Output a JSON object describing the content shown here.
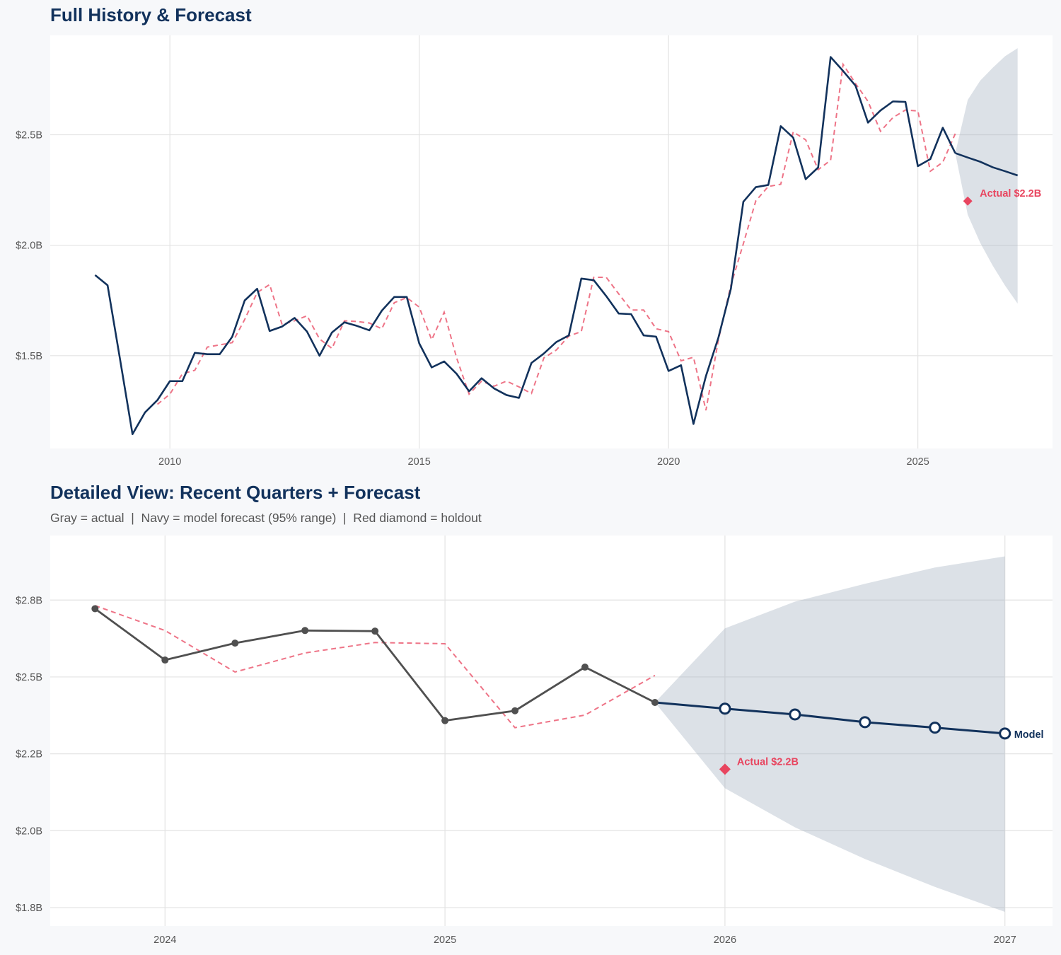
{
  "colors": {
    "navy": "#12325c",
    "red": "#e8455f",
    "gray": "#505050",
    "band": "#d9dee5",
    "grid": "#e3e3e3",
    "background": "#f7f8fa"
  },
  "chart_data": [
    {
      "type": "line",
      "title": "Full History & Forecast",
      "xlim": [
        2007.6,
        2027.7
      ],
      "ylim": [
        1.08,
        2.95
      ],
      "x_ticks": [
        2010,
        2015,
        2020,
        2025
      ],
      "x_tick_labels": [
        "2010",
        "2015",
        "2020",
        "2025"
      ],
      "y_ticks": [
        1.5,
        2.0,
        2.5
      ],
      "y_tick_labels": [
        "$1.5B",
        "$2.0B",
        "$2.5B"
      ],
      "grid": true,
      "actual": {
        "x": [
          2008.5,
          2008.75,
          2009,
          2009.25,
          2009.5,
          2009.75,
          2010,
          2010.25,
          2010.5,
          2010.75,
          2011,
          2011.25,
          2011.5,
          2011.75,
          2012,
          2012.25,
          2012.5,
          2012.75,
          2013,
          2013.25,
          2013.5,
          2013.75,
          2014,
          2014.25,
          2014.5,
          2014.75,
          2015,
          2015.25,
          2015.5,
          2015.75,
          2016,
          2016.25,
          2016.5,
          2016.75,
          2017,
          2017.25,
          2017.5,
          2017.75,
          2018,
          2018.25,
          2018.5,
          2018.75,
          2019,
          2019.25,
          2019.5,
          2019.75,
          2020,
          2020.25,
          2020.5,
          2020.75,
          2021,
          2021.25,
          2021.5,
          2021.75,
          2022,
          2022.25,
          2022.5,
          2022.75,
          2023,
          2023.25,
          2023.5,
          2023.75,
          2024,
          2024.25,
          2024.5,
          2024.75,
          2025,
          2025.25,
          2025.5,
          2025.75
        ],
        "y": [
          1.865,
          1.819,
          1.484,
          1.145,
          1.243,
          1.299,
          1.385,
          1.385,
          1.513,
          1.507,
          1.507,
          1.586,
          1.75,
          1.803,
          1.612,
          1.632,
          1.671,
          1.609,
          1.5,
          1.605,
          1.651,
          1.635,
          1.615,
          1.704,
          1.766,
          1.766,
          1.556,
          1.447,
          1.474,
          1.418,
          1.339,
          1.398,
          1.352,
          1.322,
          1.309,
          1.467,
          1.51,
          1.562,
          1.592,
          1.849,
          1.842,
          1.77,
          1.691,
          1.688,
          1.592,
          1.586,
          1.431,
          1.457,
          1.191,
          1.408,
          1.582,
          1.803,
          2.197,
          2.263,
          2.273,
          2.539,
          2.487,
          2.299,
          2.352,
          2.852,
          2.789,
          2.722,
          2.555,
          2.61,
          2.651,
          2.649,
          2.358,
          2.39,
          2.532,
          2.417
        ]
      },
      "fitted": {
        "x": [
          2009.75,
          2010,
          2010.25,
          2010.5,
          2010.75,
          2011,
          2011.25,
          2011.5,
          2011.75,
          2012,
          2012.25,
          2012.5,
          2012.75,
          2013,
          2013.25,
          2013.5,
          2013.75,
          2014,
          2014.25,
          2014.5,
          2014.75,
          2015,
          2015.25,
          2015.5,
          2015.75,
          2016,
          2016.25,
          2016.5,
          2016.75,
          2017,
          2017.25,
          2017.5,
          2017.75,
          2018,
          2018.25,
          2018.5,
          2018.75,
          2019,
          2019.25,
          2019.5,
          2019.75,
          2020,
          2020.25,
          2020.5,
          2020.75,
          2021,
          2021.25,
          2021.5,
          2021.75,
          2022,
          2022.25,
          2022.5,
          2022.75,
          2023,
          2023.25,
          2023.5,
          2023.75,
          2024,
          2024.25,
          2024.5,
          2024.75,
          2025,
          2025.25,
          2025.5,
          2025.75
        ],
        "y": [
          1.28,
          1.326,
          1.418,
          1.434,
          1.539,
          1.549,
          1.559,
          1.664,
          1.786,
          1.822,
          1.641,
          1.658,
          1.681,
          1.576,
          1.533,
          1.658,
          1.655,
          1.648,
          1.622,
          1.74,
          1.763,
          1.72,
          1.572,
          1.697,
          1.49,
          1.326,
          1.385,
          1.362,
          1.385,
          1.359,
          1.329,
          1.49,
          1.526,
          1.589,
          1.609,
          1.855,
          1.855,
          1.78,
          1.707,
          1.707,
          1.622,
          1.609,
          1.477,
          1.493,
          1.253,
          1.572,
          1.819,
          2.007,
          2.201,
          2.266,
          2.276,
          2.513,
          2.477,
          2.342,
          2.385,
          2.819,
          2.732,
          2.651,
          2.516,
          2.578,
          2.612,
          2.608,
          2.335,
          2.376,
          2.505
        ]
      },
      "forecast": {
        "x": [
          2025.75,
          2026,
          2026.25,
          2026.5,
          2026.75,
          2027
        ],
        "y": [
          2.417,
          2.397,
          2.378,
          2.353,
          2.335,
          2.316
        ]
      },
      "band_95": {
        "x": [
          2025.75,
          2026,
          2026.25,
          2026.5,
          2026.75,
          2027
        ],
        "upper": [
          2.417,
          2.658,
          2.745,
          2.803,
          2.856,
          2.892
        ],
        "lower": [
          2.417,
          2.138,
          2.011,
          1.908,
          1.817,
          1.736
        ]
      },
      "holdout": {
        "x": 2026,
        "y": 2.2,
        "label": "Actual $2.2B"
      }
    },
    {
      "type": "line",
      "title": "Detailed View: Recent Quarters + Forecast",
      "subtitle": "Gray = actual  |  Navy = model forecast (95% range)  |  Red diamond = holdout",
      "xlim": [
        2023.59,
        2027.17
      ],
      "ylim": [
        1.69,
        2.96
      ],
      "x_ticks": [
        2024,
        2025,
        2026,
        2027
      ],
      "x_tick_labels": [
        "2024",
        "2025",
        "2026",
        "2027"
      ],
      "y_ticks": [
        2.75,
        2.5,
        2.25,
        2.0,
        1.75
      ],
      "y_tick_labels": [
        "$2.8B",
        "$2.5B",
        "$2.2B",
        "$2.0B",
        "$1.8B"
      ],
      "grid": true,
      "actual": {
        "x": [
          2023.75,
          2024,
          2024.25,
          2024.5,
          2024.75,
          2025,
          2025.25,
          2025.5,
          2025.75
        ],
        "y": [
          2.722,
          2.555,
          2.61,
          2.651,
          2.649,
          2.358,
          2.39,
          2.532,
          2.417
        ]
      },
      "fitted": {
        "x": [
          2023.75,
          2024,
          2024.25,
          2024.5,
          2024.75,
          2025,
          2025.25,
          2025.5,
          2025.75
        ],
        "y": [
          2.732,
          2.651,
          2.516,
          2.578,
          2.612,
          2.608,
          2.335,
          2.376,
          2.505
        ]
      },
      "forecast": {
        "x": [
          2025.75,
          2026,
          2026.25,
          2026.5,
          2026.75,
          2027
        ],
        "y": [
          2.417,
          2.397,
          2.378,
          2.353,
          2.335,
          2.316
        ],
        "label": "Model"
      },
      "band_95": {
        "x": [
          2025.75,
          2026,
          2026.25,
          2026.5,
          2026.75,
          2027
        ],
        "upper": [
          2.417,
          2.658,
          2.745,
          2.803,
          2.856,
          2.892
        ],
        "lower": [
          2.417,
          2.138,
          2.011,
          1.908,
          1.817,
          1.736
        ]
      },
      "holdout": {
        "x": 2026,
        "y": 2.2,
        "label": "Actual $2.2B"
      }
    }
  ]
}
